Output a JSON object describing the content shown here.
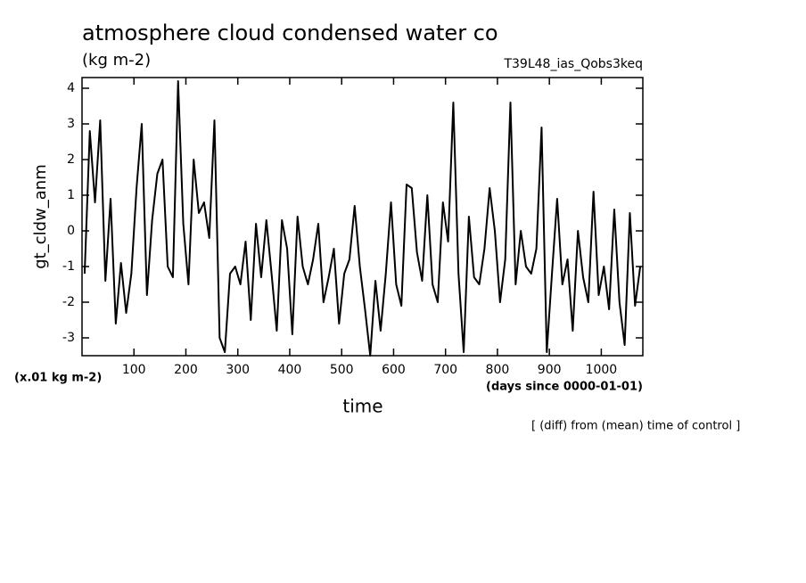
{
  "chart_data": {
    "type": "line",
    "title": "atmosphere cloud condensed water co",
    "subtitle": "(kg m-2)",
    "experiment": "T39L48_ias_Qobs3keq",
    "y_label": "gt_cldw_anm",
    "y_units": "(x.01 kg m-2)",
    "x_label": "time",
    "x_units": "(days since 0000-01-01)",
    "note": "[ (diff) from (mean) time of control ]",
    "xlim": [
      0,
      1080
    ],
    "ylim": [
      -3.5,
      4.3
    ],
    "xticks": [
      100,
      200,
      300,
      400,
      500,
      600,
      700,
      800,
      900,
      1000
    ],
    "yticks": [
      -3,
      -2,
      -1,
      0,
      1,
      2,
      3,
      4
    ],
    "color": "#000000",
    "x": [
      5,
      15,
      25,
      35,
      45,
      55,
      65,
      75,
      85,
      95,
      105,
      115,
      125,
      135,
      145,
      155,
      165,
      175,
      185,
      195,
      205,
      215,
      225,
      235,
      245,
      255,
      265,
      275,
      285,
      295,
      305,
      315,
      325,
      335,
      345,
      355,
      365,
      375,
      385,
      395,
      405,
      415,
      425,
      435,
      445,
      455,
      465,
      475,
      485,
      495,
      505,
      515,
      525,
      535,
      545,
      555,
      565,
      575,
      585,
      595,
      605,
      615,
      625,
      635,
      645,
      655,
      665,
      675,
      685,
      695,
      705,
      715,
      725,
      735,
      745,
      755,
      765,
      775,
      785,
      795,
      805,
      815,
      825,
      835,
      845,
      855,
      865,
      875,
      885,
      895,
      905,
      915,
      925,
      935,
      945,
      955,
      965,
      975,
      985,
      995,
      1005,
      1015,
      1025,
      1035,
      1045,
      1055,
      1065,
      1075
    ],
    "values": [
      -1.2,
      2.8,
      0.8,
      3.1,
      -1.4,
      0.9,
      -2.6,
      -0.9,
      -2.3,
      -1.2,
      1.2,
      3.0,
      -1.8,
      0.3,
      1.6,
      2.0,
      -1.0,
      -1.3,
      4.2,
      0.2,
      -1.5,
      2.0,
      0.5,
      0.8,
      -0.2,
      3.1,
      -3.0,
      -3.4,
      -1.2,
      -1.0,
      -1.5,
      -0.3,
      -2.5,
      0.2,
      -1.3,
      0.3,
      -1.2,
      -2.8,
      0.3,
      -0.5,
      -2.9,
      0.4,
      -1.0,
      -1.5,
      -0.8,
      0.2,
      -2.0,
      -1.3,
      -0.5,
      -2.6,
      -1.2,
      -0.8,
      0.7,
      -1.0,
      -2.2,
      -3.5,
      -1.4,
      -2.8,
      -1.2,
      0.8,
      -1.5,
      -2.1,
      1.3,
      1.2,
      -0.6,
      -1.4,
      1.0,
      -1.5,
      -2.0,
      0.8,
      -0.3,
      3.6,
      -1.2,
      -3.4,
      0.4,
      -1.3,
      -1.5,
      -0.5,
      1.2,
      0.0,
      -2.0,
      -0.8,
      3.6,
      -1.5,
      0.0,
      -1.0,
      -1.2,
      -0.5,
      2.9,
      -3.4,
      -1.2,
      0.9,
      -1.5,
      -0.8,
      -2.8,
      0.0,
      -1.3,
      -2.0,
      1.1,
      -1.8,
      -1.0,
      -2.2,
      0.6,
      -2.0,
      -3.2,
      0.5,
      -2.1,
      -1.0
    ]
  }
}
